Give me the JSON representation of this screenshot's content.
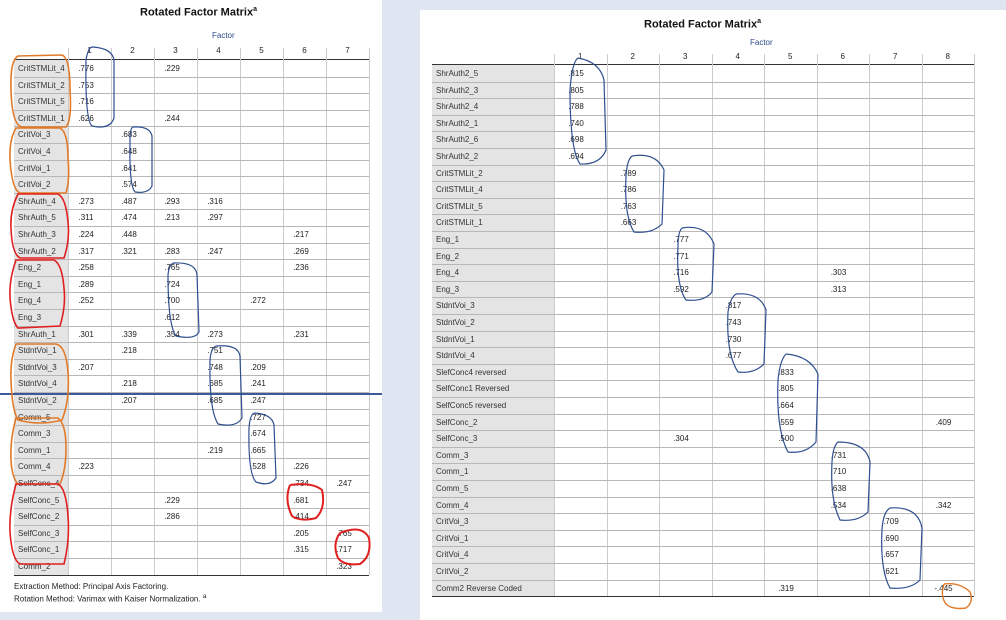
{
  "left": {
    "title": "Rotated Factor Matrix",
    "title_sup": "a",
    "factor_label": "Factor",
    "columns": [
      "1",
      "2",
      "3",
      "4",
      "5",
      "6",
      "7"
    ],
    "rows": [
      {
        "label": "CritSTMLit_4",
        "values": [
          ".776",
          "",
          ".229",
          "",
          "",
          "",
          ""
        ]
      },
      {
        "label": "CritSTMLit_2",
        "values": [
          ".753",
          "",
          "",
          "",
          "",
          "",
          ""
        ]
      },
      {
        "label": "CritSTMLit_5",
        "values": [
          ".716",
          "",
          "",
          "",
          "",
          "",
          ""
        ]
      },
      {
        "label": "CritSTMLit_1",
        "values": [
          ".626",
          "",
          ".244",
          "",
          "",
          "",
          ""
        ]
      },
      {
        "label": "CritVoi_3",
        "values": [
          "",
          ".683",
          "",
          "",
          "",
          "",
          ""
        ]
      },
      {
        "label": "CritVoi_4",
        "values": [
          "",
          ".648",
          "",
          "",
          "",
          "",
          ""
        ]
      },
      {
        "label": "CritVoi_1",
        "values": [
          "",
          ".641",
          "",
          "",
          "",
          "",
          ""
        ]
      },
      {
        "label": "CritVoi_2",
        "values": [
          "",
          ".574",
          "",
          "",
          "",
          "",
          ""
        ]
      },
      {
        "label": "ShrAuth_4",
        "values": [
          ".273",
          ".487",
          ".293",
          ".316",
          "",
          "",
          ""
        ]
      },
      {
        "label": "ShrAuth_5",
        "values": [
          ".311",
          ".474",
          ".213",
          ".297",
          "",
          "",
          ""
        ]
      },
      {
        "label": "ShrAuth_3",
        "values": [
          ".224",
          ".448",
          "",
          "",
          "",
          ".217",
          ""
        ]
      },
      {
        "label": "ShrAuth_2",
        "values": [
          ".317",
          ".321",
          ".283",
          ".247",
          "",
          ".269",
          ""
        ]
      },
      {
        "label": "Eng_2",
        "values": [
          ".258",
          "",
          ".765",
          "",
          "",
          ".236",
          ""
        ]
      },
      {
        "label": "Eng_1",
        "values": [
          ".289",
          "",
          ".724",
          "",
          "",
          "",
          ""
        ]
      },
      {
        "label": "Eng_4",
        "values": [
          ".252",
          "",
          ".700",
          "",
          ".272",
          "",
          ""
        ]
      },
      {
        "label": "Eng_3",
        "values": [
          "",
          "",
          ".612",
          "",
          "",
          "",
          ""
        ]
      },
      {
        "label": "ShrAuth_1",
        "values": [
          ".301",
          ".339",
          ".354",
          ".273",
          "",
          ".231",
          ""
        ]
      },
      {
        "label": "StdntVoi_1",
        "values": [
          "",
          ".218",
          "",
          ".751",
          "",
          "",
          ""
        ]
      },
      {
        "label": "StdntVoi_3",
        "values": [
          ".207",
          "",
          "",
          ".748",
          ".209",
          "",
          ""
        ]
      },
      {
        "label": "StdntVoi_4",
        "values": [
          "",
          ".218",
          "",
          ".685",
          ".241",
          "",
          ""
        ]
      },
      {
        "label": "StdntVoi_2",
        "values": [
          "",
          ".207",
          "",
          ".685",
          ".247",
          "",
          ""
        ]
      },
      {
        "label": "Comm_5",
        "values": [
          "",
          "",
          "",
          "",
          ".727",
          "",
          ""
        ]
      },
      {
        "label": "Comm_3",
        "values": [
          "",
          "",
          "",
          "",
          ".674",
          "",
          ""
        ]
      },
      {
        "label": "Comm_1",
        "values": [
          "",
          "",
          "",
          ".219",
          ".665",
          "",
          ""
        ]
      },
      {
        "label": "Comm_4",
        "values": [
          ".223",
          "",
          "",
          "",
          ".528",
          ".226",
          ""
        ]
      },
      {
        "label": "SelfConc_4",
        "values": [
          "",
          "",
          "",
          "",
          "",
          ".734",
          ".247"
        ]
      },
      {
        "label": "SelfConc_5",
        "values": [
          "",
          "",
          ".229",
          "",
          "",
          ".681",
          ""
        ]
      },
      {
        "label": "SelfConc_2",
        "values": [
          "",
          "",
          ".286",
          "",
          "",
          ".414",
          ""
        ]
      },
      {
        "label": "SelfConc_3",
        "values": [
          "",
          "",
          "",
          "",
          "",
          ".205",
          ".765"
        ]
      },
      {
        "label": "SelfConc_1",
        "values": [
          "",
          "",
          "",
          "",
          "",
          ".315",
          ".717"
        ]
      },
      {
        "label": "Comm_2",
        "values": [
          "",
          "",
          "",
          "",
          "",
          "",
          ".323"
        ]
      }
    ],
    "footnote1": "Extraction Method: Principal Axis Factoring.",
    "footnote2": "Rotation Method: Varimax with Kaiser Normalization.",
    "footnote2_sup": "a"
  },
  "right": {
    "title": "Rotated Factor Matrix",
    "title_sup": "a",
    "factor_label": "Factor",
    "columns": [
      "1",
      "2",
      "3",
      "4",
      "5",
      "6",
      "7",
      "8"
    ],
    "rows": [
      {
        "label": "ShrAuth2_5",
        "values": [
          ".815",
          "",
          "",
          "",
          "",
          "",
          "",
          ""
        ]
      },
      {
        "label": "ShrAuth2_3",
        "values": [
          ".805",
          "",
          "",
          "",
          "",
          "",
          "",
          ""
        ]
      },
      {
        "label": "ShrAuth2_4",
        "values": [
          ".788",
          "",
          "",
          "",
          "",
          "",
          "",
          ""
        ]
      },
      {
        "label": "ShrAuth2_1",
        "values": [
          ".740",
          "",
          "",
          "",
          "",
          "",
          "",
          ""
        ]
      },
      {
        "label": "ShrAuth2_6",
        "values": [
          ".698",
          "",
          "",
          "",
          "",
          "",
          "",
          ""
        ]
      },
      {
        "label": "ShrAuth2_2",
        "values": [
          ".694",
          "",
          "",
          "",
          "",
          "",
          "",
          ""
        ]
      },
      {
        "label": "CritSTMLit_2",
        "values": [
          "",
          ".789",
          "",
          "",
          "",
          "",
          "",
          ""
        ]
      },
      {
        "label": "CritSTMLit_4",
        "values": [
          "",
          ".786",
          "",
          "",
          "",
          "",
          "",
          ""
        ]
      },
      {
        "label": "CritSTMLit_5",
        "values": [
          "",
          ".763",
          "",
          "",
          "",
          "",
          "",
          ""
        ]
      },
      {
        "label": "CritSTMLit_1",
        "values": [
          "",
          ".663",
          "",
          "",
          "",
          "",
          "",
          ""
        ]
      },
      {
        "label": "Eng_1",
        "values": [
          "",
          "",
          ".777",
          "",
          "",
          "",
          "",
          ""
        ]
      },
      {
        "label": "Eng_2",
        "values": [
          "",
          "",
          ".771",
          "",
          "",
          "",
          "",
          ""
        ]
      },
      {
        "label": "Eng_4",
        "values": [
          "",
          "",
          ".716",
          "",
          "",
          ".303",
          "",
          ""
        ]
      },
      {
        "label": "Eng_3",
        "values": [
          "",
          "",
          ".592",
          "",
          "",
          ".313",
          "",
          ""
        ]
      },
      {
        "label": "StdntVoi_3",
        "values": [
          "",
          "",
          "",
          ".817",
          "",
          "",
          "",
          ""
        ]
      },
      {
        "label": "StdntVoi_2",
        "values": [
          "",
          "",
          "",
          ".743",
          "",
          "",
          "",
          ""
        ]
      },
      {
        "label": "StdntVoi_1",
        "values": [
          "",
          "",
          "",
          ".730",
          "",
          "",
          "",
          ""
        ]
      },
      {
        "label": "StdntVoi_4",
        "values": [
          "",
          "",
          "",
          ".677",
          "",
          "",
          "",
          ""
        ]
      },
      {
        "label": "SlefConc4 reversed",
        "values": [
          "",
          "",
          "",
          "",
          ".833",
          "",
          "",
          ""
        ]
      },
      {
        "label": "SelfConc1 Reversed",
        "values": [
          "",
          "",
          "",
          "",
          ".805",
          "",
          "",
          ""
        ]
      },
      {
        "label": "SelfConc5  reversed",
        "values": [
          "",
          "",
          "",
          "",
          ".664",
          "",
          "",
          ""
        ]
      },
      {
        "label": "SelfConc_2",
        "values": [
          "",
          "",
          "",
          "",
          ".559",
          "",
          "",
          ".409"
        ]
      },
      {
        "label": "SelfConc_3",
        "values": [
          "",
          "",
          ".304",
          "",
          ".500",
          "",
          "",
          ""
        ]
      },
      {
        "label": "Comm_3",
        "values": [
          "",
          "",
          "",
          "",
          "",
          ".731",
          "",
          ""
        ]
      },
      {
        "label": "Comm_1",
        "values": [
          "",
          "",
          "",
          "",
          "",
          ".710",
          "",
          ""
        ]
      },
      {
        "label": "Comm_5",
        "values": [
          "",
          "",
          "",
          "",
          "",
          ".638",
          "",
          ""
        ]
      },
      {
        "label": "Comm_4",
        "values": [
          "",
          "",
          "",
          "",
          "",
          ".534",
          "",
          ".342"
        ]
      },
      {
        "label": "CritVoi_3",
        "values": [
          "",
          "",
          "",
          "",
          "",
          "",
          ".709",
          ""
        ]
      },
      {
        "label": "CritVoi_1",
        "values": [
          "",
          "",
          "",
          "",
          "",
          "",
          ".690",
          ""
        ]
      },
      {
        "label": "CritVoi_4",
        "values": [
          "",
          "",
          "",
          "",
          "",
          "",
          ".657",
          ""
        ]
      },
      {
        "label": "CritVoi_2",
        "values": [
          "",
          "",
          "",
          "",
          "",
          "",
          ".621",
          ""
        ]
      },
      {
        "label": "Comm2 Reverse Coded",
        "values": [
          "",
          "",
          "",
          "",
          ".319",
          "",
          "",
          "-.445"
        ]
      }
    ]
  },
  "colors": {
    "page_background": "#dfe6f2",
    "label_column": "#e4e4e4",
    "annotation_blue": "#2f4f8f",
    "annotation_orange": "#e07a2a",
    "annotation_red": "#e02020"
  }
}
